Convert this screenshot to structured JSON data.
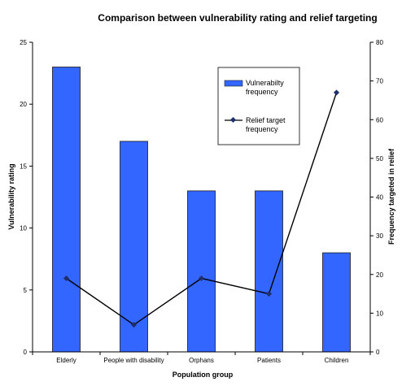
{
  "chart_data": {
    "type": "bar",
    "title": "Comparison between vulnerability rating and relief targeting",
    "xlabel": "Population group",
    "ylabel": "Vulnerability rating",
    "y2label": "Frequency targeted in relief",
    "categories": [
      "Elderly",
      "People with disability",
      "Orphans",
      "Patients",
      "Children"
    ],
    "ylim": [
      0,
      25
    ],
    "yticks": [
      0,
      5,
      10,
      15,
      20,
      25
    ],
    "y2lim": [
      0,
      80
    ],
    "y2ticks": [
      0,
      10,
      20,
      30,
      40,
      50,
      60,
      70,
      80
    ],
    "grid": false,
    "legend_position": "top-right",
    "series": [
      {
        "name": "Vulnerabilty frequency",
        "type": "bar",
        "axis": "left",
        "color": "#3366ff",
        "values": [
          23,
          17,
          13,
          13,
          8
        ]
      },
      {
        "name": "Relief target frequency",
        "type": "line",
        "axis": "right",
        "color": "#000000",
        "marker_color": "#1f2f6b",
        "values": [
          19,
          7,
          19,
          15,
          67
        ]
      }
    ]
  }
}
